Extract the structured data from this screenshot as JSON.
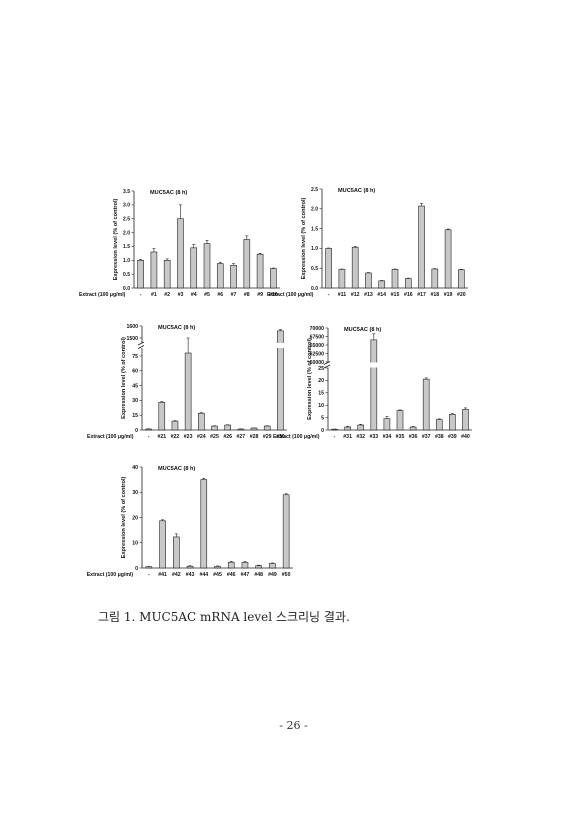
{
  "caption": "그림 1. MUC5AC mRNA level 스크리닝 결과.",
  "page_number": "- 26 -",
  "colors": {
    "bar": "#c8c8c8",
    "stroke": "#222222"
  },
  "chart_data": [
    {
      "type": "bar",
      "title": "MUC5AC (8 h)",
      "ylabel": "Expression level (% of control)",
      "xlabel": "Extract (100 μg/ml)",
      "categories": [
        "-",
        "#1",
        "#2",
        "#3",
        "#4",
        "#5",
        "#6",
        "#7",
        "#8",
        "#9",
        "#10"
      ],
      "values": [
        1.0,
        1.3,
        1.0,
        2.5,
        1.45,
        1.6,
        0.88,
        0.82,
        1.75,
        1.22,
        0.7
      ],
      "errors": [
        0.03,
        0.12,
        0.05,
        0.5,
        0.12,
        0.12,
        0.04,
        0.06,
        0.13,
        0.03,
        0.02
      ],
      "ylim": [
        0,
        3.5
      ],
      "yticks": [
        "0.0",
        "0.5",
        "1.0",
        "1.5",
        "2.0",
        "2.5",
        "3.0",
        "3.5"
      ],
      "grid": false
    },
    {
      "type": "bar",
      "title": "MUC5AC (8 h)",
      "ylabel": "Expression level (% of control)",
      "xlabel": "Extract (100 μg/ml)",
      "categories": [
        "-",
        "#11",
        "#12",
        "#13",
        "#14",
        "#15",
        "#16",
        "#17",
        "#18",
        "#19",
        "#20"
      ],
      "values": [
        1.0,
        0.47,
        1.03,
        0.38,
        0.18,
        0.47,
        0.24,
        2.07,
        0.48,
        1.47,
        0.46
      ],
      "errors": [
        0.01,
        0.01,
        0.02,
        0.01,
        0.01,
        0.01,
        0.01,
        0.07,
        0.01,
        0.02,
        0.01
      ],
      "ylim": [
        0,
        2.5
      ],
      "yticks": [
        "0.0",
        "0.5",
        "1.0",
        "1.5",
        "2.0",
        "2.5"
      ],
      "grid": false
    },
    {
      "type": "bar",
      "title": "MUC5AC (8 h)",
      "ylabel": "Expression level (% of control)",
      "xlabel": "Extract (100 μg/ml)",
      "broken_axis": true,
      "categories": [
        "-",
        "#21",
        "#22",
        "#23",
        "#24",
        "#25",
        "#26",
        "#27",
        "#28",
        "#29",
        "#30"
      ],
      "values": [
        1,
        28,
        9,
        78,
        17,
        4,
        5,
        1,
        2,
        4,
        1560
      ],
      "errors": [
        0.2,
        0.8,
        0.5,
        1,
        0.5,
        0.3,
        0.3,
        0.2,
        0.2,
        0.3,
        10
      ],
      "yticks": [
        "0",
        "15",
        "30",
        "45",
        "60",
        "75",
        "1500",
        "1600"
      ],
      "grid": false
    },
    {
      "type": "bar",
      "title": "MUC5AC (8 h)",
      "ylabel": "Expression level (% of control)",
      "xlabel": "Extract (100 μg/ml)",
      "broken_axis": true,
      "categories": [
        "-",
        "#31",
        "#32",
        "#33",
        "#34",
        "#35",
        "#36",
        "#37",
        "#38",
        "#39",
        "#40"
      ],
      "values": [
        0.3,
        1.2,
        2,
        66500,
        4.6,
        7.8,
        1.2,
        20.5,
        4.2,
        6.3,
        8.3
      ],
      "errors": [
        0.1,
        0.3,
        0.3,
        1800,
        0.8,
        0.3,
        0.2,
        0.5,
        0.3,
        0.3,
        0.6
      ],
      "yticks": [
        "0",
        "5",
        "10",
        "15",
        "20",
        "25",
        "60000",
        "62500",
        "65000",
        "67500",
        "70000"
      ],
      "grid": false
    },
    {
      "type": "bar",
      "title": "MUC5AC (8 h)",
      "ylabel": "Expression level (% of control)",
      "xlabel": "Extract (100 μg/ml)",
      "categories": [
        "-",
        "#41",
        "#42",
        "#43",
        "#44",
        "#45",
        "#46",
        "#47",
        "#48",
        "#49",
        "#50"
      ],
      "values": [
        0.5,
        18.7,
        12.3,
        0.7,
        35,
        0.6,
        2.3,
        2.2,
        0.9,
        1.8,
        29
      ],
      "errors": [
        0.1,
        0.4,
        1.2,
        0.2,
        0.5,
        0.2,
        0.3,
        0.3,
        0.2,
        0.2,
        0.4
      ],
      "ylim": [
        0,
        40
      ],
      "yticks": [
        "0",
        "10",
        "20",
        "30",
        "40"
      ],
      "grid": false
    }
  ]
}
